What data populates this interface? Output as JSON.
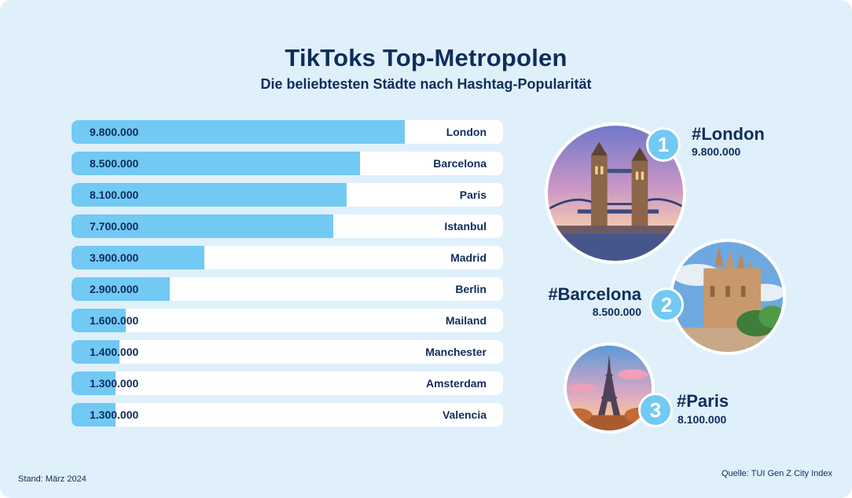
{
  "header": {
    "title": "TikToks Top-Metropolen",
    "subtitle": "Die beliebtesten Städte nach Hashtag-Popularität"
  },
  "colors": {
    "bar": "#72c9f3",
    "track": "#ffffff",
    "text": "#0f2d5c",
    "background": "#dff0fb"
  },
  "chart_data": {
    "type": "bar",
    "orientation": "horizontal",
    "categories": [
      "London",
      "Barcelona",
      "Paris",
      "Istanbul",
      "Madrid",
      "Berlin",
      "Mailand",
      "Manchester",
      "Amsterdam",
      "Valencia"
    ],
    "values": [
      9800000,
      8500000,
      8100000,
      7700000,
      3900000,
      2900000,
      1600000,
      1400000,
      1300000,
      1300000
    ],
    "value_labels": [
      "9.800.000",
      "8.500.000",
      "8.100.000",
      "7.700.000",
      "3.900.000",
      "2.900.000",
      "1.600.000",
      "1.400.000",
      "1.300.000",
      "1.300.000"
    ],
    "title": "TikToks Top-Metropolen",
    "subtitle": "Die beliebtesten Städte nach Hashtag-Popularität",
    "xlim": [
      0,
      12700000
    ],
    "grid": false,
    "legend": "none"
  },
  "podium": [
    {
      "rank": "1",
      "hashtag": "#London",
      "value": "9.800.000",
      "image": "tower-bridge-photo"
    },
    {
      "rank": "2",
      "hashtag": "#Barcelona",
      "value": "8.500.000",
      "image": "sagrada-familia-photo"
    },
    {
      "rank": "3",
      "hashtag": "#Paris",
      "value": "8.100.000",
      "image": "eiffel-tower-photo"
    }
  ],
  "footer": {
    "date": "Stand: März 2024",
    "source": "Quelle: TUI Gen Z City Index"
  }
}
